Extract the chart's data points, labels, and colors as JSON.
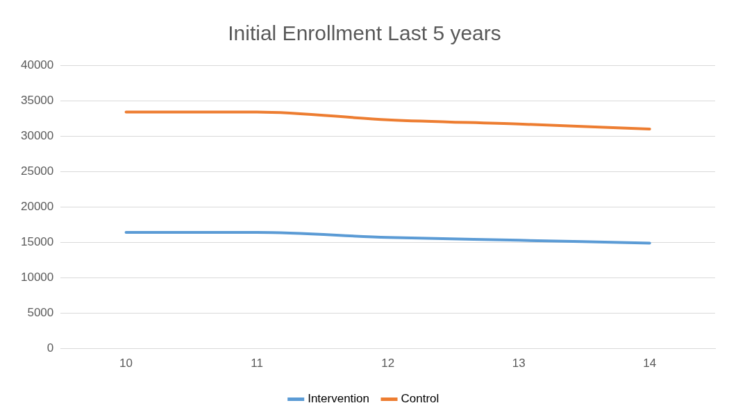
{
  "chart_data": {
    "type": "line",
    "title": "Initial Enrollment Last 5 years",
    "categories": [
      "10",
      "11",
      "12",
      "13",
      "14"
    ],
    "series": [
      {
        "name": "Intervention",
        "color": "#5b9bd5",
        "values": [
          16400,
          16400,
          15700,
          15300,
          14900
        ]
      },
      {
        "name": "Control",
        "color": "#ed7d31",
        "values": [
          33400,
          33400,
          32300,
          31700,
          31000
        ]
      }
    ],
    "ylim": [
      0,
      40000
    ],
    "yticks": [
      0,
      5000,
      10000,
      15000,
      20000,
      25000,
      30000,
      35000,
      40000
    ],
    "grid": "y",
    "legend": "bottom",
    "marker": "none",
    "line_style": "solid"
  }
}
